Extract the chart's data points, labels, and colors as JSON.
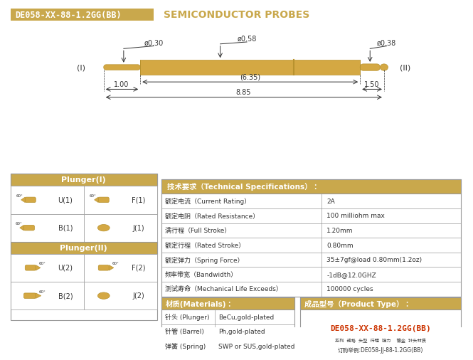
{
  "title_part": "DE058-XX-88-1.2GG(BB)",
  "title_main": "SEMICONDUCTOR PROBES",
  "header_bg": "#C9A84C",
  "header_text_color": "#FFFFFF",
  "header_title_color": "#C9A84C",
  "bg_color": "#FFFFFF",
  "gold_color": "#C9A84C",
  "dark_text": "#333333",
  "table_border": "#AAAAAA",
  "probe_gold": "#D4A843",
  "probe_outline": "#B8922E",
  "dim_d030": "ø0.30",
  "dim_d058": "ø0.58",
  "dim_d038": "ø0.38",
  "dim_635": "(6.35)",
  "dim_100": "1.00",
  "dim_150": "1.50",
  "dim_885": "8.85",
  "label_I": "(I)",
  "label_II": "(II)",
  "specs": [
    [
      "额定电流（Current Rating）",
      "2A"
    ],
    [
      "额定电阴（Rated Resistance）",
      "100 milliohm max"
    ],
    [
      "满行程（Full Stroke）",
      "1.20mm"
    ],
    [
      "额定行程（Rated Stroke）",
      "0.80mm"
    ],
    [
      "额定弹力（Spring Force）",
      "35±7gf@load 0.80mm(1.2oz)"
    ],
    [
      "频率带宽（Bandwidth）",
      "-1dB@12.0GHZ"
    ],
    [
      "测试寿命（Mechanical Life Exceeds）",
      "100000 cycles"
    ]
  ],
  "specs_title": "技术要求（Technical Specifications）：",
  "materials_title": "材质(Materials)：",
  "materials": [
    [
      "针头 (Plunger)",
      "BeCu,gold-plated"
    ],
    [
      "针管 (Barrel)",
      "Ph,gold-plated"
    ],
    [
      "弹簧 (Spring)",
      "SWP or SUS,gold-plated"
    ]
  ],
  "product_title": "成品型号（Product Type）：",
  "product_model": "DE058-XX-88-1.2GG(BB)",
  "product_labels": "系列  规格  头型  行程  弹力    镶金  针头材质",
  "product_order": "订购举例:DE058-JJ-88-1.2GG(BB)",
  "plunger1_title": "Plunger(I)",
  "plunger2_title": "Plunger(II)",
  "plunger1_types": [
    "U(1)",
    "F(1)",
    "B(1)",
    "J(1)"
  ],
  "plunger2_types": [
    "U(2)",
    "F(2)",
    "B(2)",
    "J(2)"
  ]
}
